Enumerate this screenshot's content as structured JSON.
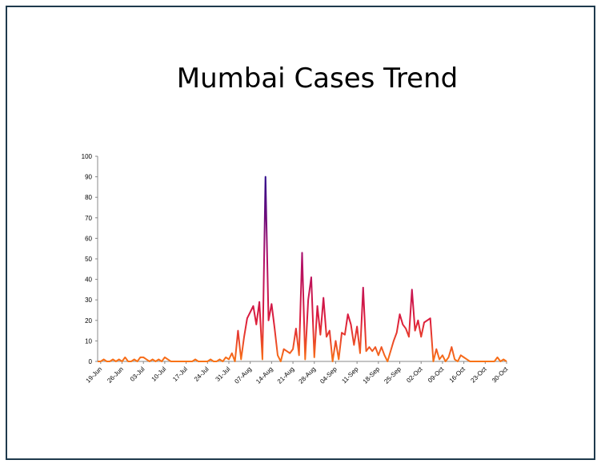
{
  "chart_data": {
    "type": "line",
    "title": "Mumbai Cases Trend",
    "xlabel": "",
    "ylabel": "",
    "ylim": [
      0,
      100
    ],
    "yticks": [
      0,
      10,
      20,
      30,
      40,
      50,
      60,
      70,
      80,
      90,
      100
    ],
    "xtick_labels": [
      "19-Jun",
      "26-Jun",
      "03-Jul",
      "10-Jul",
      "17-Jul",
      "24-Jul",
      "31-Jul",
      "07-Aug",
      "14-Aug",
      "21-Aug",
      "28-Aug",
      "04-Sep",
      "11-Sep",
      "18-Sep",
      "25-Sep",
      "02-Oct",
      "09-Oct",
      "16-Oct",
      "23-Oct",
      "30-Oct"
    ],
    "start_label": "19-Jun",
    "grid": false,
    "legend": "none",
    "colors": {
      "low": "#f97316",
      "mid": "#dc1c3c",
      "high": "#2b0a8c"
    },
    "values": [
      0,
      0,
      1,
      0,
      0,
      1,
      0,
      1,
      0,
      2,
      0,
      0,
      1,
      0,
      2,
      2,
      1,
      0,
      1,
      0,
      1,
      0,
      2,
      1,
      0,
      0,
      0,
      0,
      0,
      0,
      0,
      0,
      1,
      0,
      0,
      0,
      0,
      1,
      0,
      0,
      1,
      0,
      2,
      1,
      4,
      0,
      15,
      1,
      12,
      21,
      24,
      27,
      18,
      29,
      1,
      90,
      20,
      28,
      16,
      3,
      0,
      6,
      5,
      4,
      6,
      16,
      3,
      53,
      1,
      30,
      41,
      2,
      27,
      13,
      31,
      12,
      15,
      0,
      10,
      1,
      14,
      13,
      23,
      18,
      8,
      17,
      4,
      36,
      5,
      7,
      5,
      7,
      3,
      7,
      3,
      0,
      5,
      10,
      14,
      23,
      18,
      16,
      12,
      35,
      15,
      20,
      12,
      19,
      20,
      21,
      0,
      6,
      1,
      3,
      0,
      2,
      7,
      1,
      0,
      3,
      2,
      1,
      0,
      0,
      0,
      0,
      0,
      0,
      0,
      0,
      0,
      2,
      0,
      1,
      0
    ]
  }
}
